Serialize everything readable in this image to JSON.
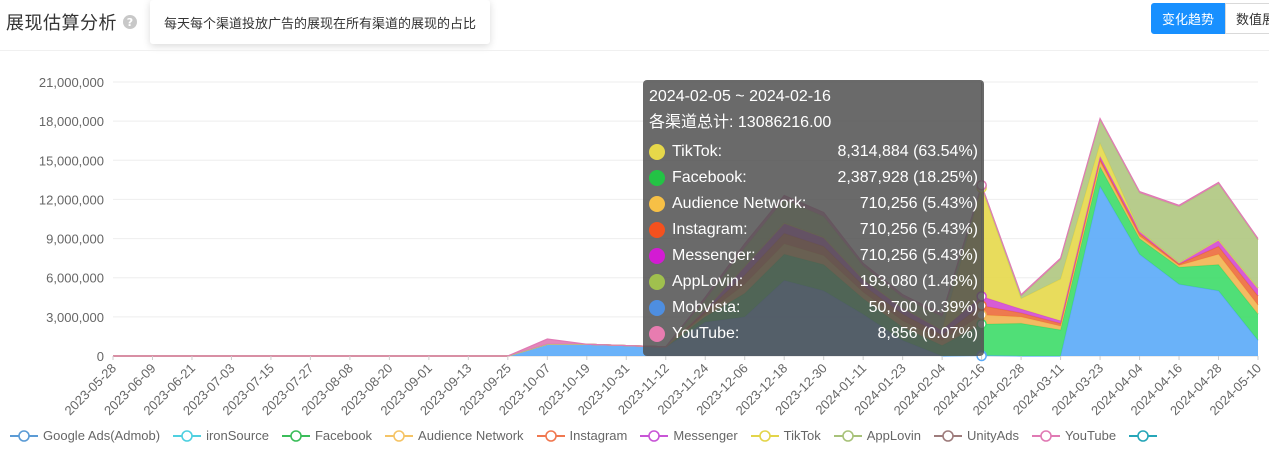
{
  "header": {
    "title": "展现估算分析",
    "help_icon_text": "?",
    "help_tooltip": "每天每个渠道投放广告的展现在所有渠道的展现的占比",
    "tabs": [
      "变化趋势",
      "数值展"
    ]
  },
  "chart_data": {
    "type": "area",
    "stacked": true,
    "ylim": [
      0,
      21000000
    ],
    "y_ticks": [
      "0",
      "3,000,000",
      "6,000,000",
      "9,000,000",
      "12,000,000",
      "15,000,000",
      "18,000,000",
      "21,000,000"
    ],
    "x_ticks": [
      "2023-05-28",
      "2023-06-09",
      "2023-06-21",
      "2023-07-03",
      "2023-07-15",
      "2023-07-27",
      "2023-08-08",
      "2023-08-20",
      "2023-09-01",
      "2023-09-13",
      "2023-09-25",
      "2023-10-07",
      "2023-10-19",
      "2023-10-31",
      "2023-11-12",
      "2023-11-24",
      "2023-12-06",
      "2023-12-18",
      "2023-12-30",
      "2024-01-11",
      "2024-01-23",
      "2024-02-04",
      "2024-02-16",
      "2024-02-28",
      "2024-03-11",
      "2024-03-23",
      "2024-04-04",
      "2024-04-16",
      "2024-04-28",
      "2024-05-10"
    ],
    "grid": true,
    "legend_position": "bottom",
    "series": [
      {
        "name": "Mobvista",
        "color": "#5aaaf8",
        "values": [
          0,
          0,
          0,
          0,
          0,
          0,
          0,
          0,
          0,
          0,
          0,
          900000,
          900000,
          800000,
          700000,
          2600000,
          3000000,
          5800000,
          5000000,
          3200000,
          1200000,
          0,
          50700,
          0,
          0,
          13000000,
          7800000,
          5500000,
          5000000,
          1200000
        ]
      },
      {
        "name": "Facebook",
        "color": "#3ddb68",
        "values": [
          0,
          0,
          0,
          0,
          0,
          0,
          0,
          0,
          0,
          0,
          0,
          0,
          0,
          0,
          0,
          400000,
          1800000,
          2000000,
          2000000,
          1200000,
          1000000,
          800000,
          2387928,
          2500000,
          2000000,
          1500000,
          1200000,
          1300000,
          2000000,
          2000000
        ]
      },
      {
        "name": "Audience Network",
        "color": "#f2b451",
        "values": [
          0,
          0,
          0,
          0,
          0,
          0,
          0,
          0,
          0,
          0,
          0,
          0,
          0,
          0,
          0,
          200000,
          700000,
          800000,
          700000,
          500000,
          500000,
          400000,
          710256,
          500000,
          300000,
          400000,
          200000,
          150000,
          800000,
          700000
        ]
      },
      {
        "name": "Instagram",
        "color": "#ec6c3c",
        "values": [
          0,
          0,
          0,
          0,
          0,
          0,
          0,
          0,
          0,
          0,
          0,
          0,
          0,
          0,
          0,
          200000,
          700000,
          800000,
          700000,
          500000,
          500000,
          400000,
          710256,
          300000,
          200000,
          200000,
          200000,
          100000,
          600000,
          700000
        ]
      },
      {
        "name": "Messenger",
        "color": "#d24ad2",
        "values": [
          0,
          0,
          0,
          0,
          0,
          0,
          0,
          0,
          0,
          0,
          0,
          0,
          0,
          0,
          0,
          200000,
          700000,
          800000,
          700000,
          500000,
          500000,
          400000,
          710256,
          300000,
          200000,
          200000,
          200000,
          100000,
          500000,
          600000
        ]
      },
      {
        "name": "TikTok",
        "color": "#e6d84a",
        "values": [
          0,
          0,
          0,
          0,
          0,
          0,
          0,
          0,
          0,
          0,
          0,
          0,
          0,
          0,
          0,
          0,
          0,
          0,
          0,
          0,
          0,
          0,
          8314884,
          800000,
          3200000,
          1000000,
          0,
          0,
          0,
          0
        ]
      },
      {
        "name": "AppLovin",
        "color": "#afc780",
        "values": [
          0,
          0,
          0,
          0,
          0,
          0,
          0,
          0,
          0,
          0,
          0,
          0,
          0,
          0,
          0,
          700000,
          1400000,
          1800000,
          1600000,
          1000000,
          800000,
          1000000,
          193080,
          200000,
          1500000,
          1800000,
          2900000,
          4300000,
          4300000,
          3700000
        ]
      },
      {
        "name": "YouTube",
        "color": "#e07ab4",
        "values": [
          0,
          0,
          0,
          0,
          0,
          0,
          0,
          0,
          0,
          0,
          0,
          400000,
          0,
          0,
          0,
          200000,
          300000,
          300000,
          300000,
          200000,
          200000,
          200000,
          8856,
          100000,
          100000,
          100000,
          100000,
          100000,
          100000,
          100000
        ]
      }
    ],
    "tooltip": {
      "title": "2024-02-05 ~ 2024-02-16",
      "total": "各渠道总计: 13086216.00",
      "rows": [
        {
          "name": "TikTok:",
          "value": "8,314,884 (63.54%)",
          "color": "#e6d84a"
        },
        {
          "name": "Facebook:",
          "value": "2,387,928 (18.25%)",
          "color": "#23c345"
        },
        {
          "name": "Audience Network:",
          "value": "710,256 (5.43%)",
          "color": "#f7c046"
        },
        {
          "name": "Instagram:",
          "value": "710,256 (5.43%)",
          "color": "#f4511e"
        },
        {
          "name": "Messenger:",
          "value": "710,256 (5.43%)",
          "color": "#d31bd3"
        },
        {
          "name": "AppLovin:",
          "value": "193,080 (1.48%)",
          "color": "#a0c04e"
        },
        {
          "name": "Mobvista:",
          "value": "50,700 (0.39%)",
          "color": "#4e8ee0"
        },
        {
          "name": "YouTube:",
          "value": "8,856 (0.07%)",
          "color": "#e87cb0"
        }
      ]
    },
    "legend": [
      {
        "name": "Google Ads(Admob)",
        "color": "#5b9bd5"
      },
      {
        "name": "ironSource",
        "color": "#4fd0e0"
      },
      {
        "name": "Facebook",
        "color": "#3bbd5a"
      },
      {
        "name": "Audience Network",
        "color": "#f5c466"
      },
      {
        "name": "Instagram",
        "color": "#f07850"
      },
      {
        "name": "Messenger",
        "color": "#c855d6"
      },
      {
        "name": "TikTok",
        "color": "#e3d54a"
      },
      {
        "name": "AppLovin",
        "color": "#a8c27a"
      },
      {
        "name": "UnityAds",
        "color": "#9e7c7c"
      },
      {
        "name": "YouTube",
        "color": "#e07ab4"
      },
      {
        "name": "",
        "color": "#26a6b8"
      }
    ]
  }
}
